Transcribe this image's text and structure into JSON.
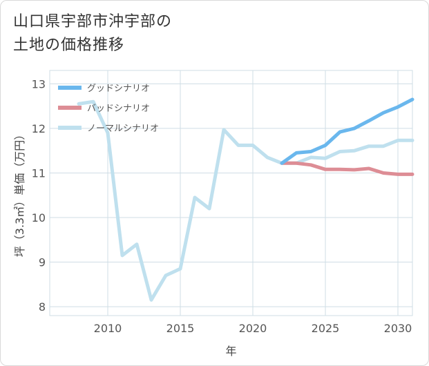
{
  "title_line1": "山口県宇部市沖宇部の",
  "title_line2": "土地の価格推移",
  "chart_data": {
    "type": "line",
    "xlabel": "年",
    "ylabel": "坪（3.3㎡）単価（万円）",
    "xlim": [
      2006,
      2031
    ],
    "ylim": [
      7.8,
      13.3
    ],
    "xticks": [
      2010,
      2015,
      2020,
      2025,
      2030
    ],
    "yticks": [
      8,
      9,
      10,
      11,
      12,
      13
    ],
    "grid": true,
    "legend_position": "top-left",
    "series": [
      {
        "name": "グッドシナリオ",
        "color": "#6ab7ed",
        "x": [
          2022,
          2023,
          2024,
          2025,
          2026,
          2027,
          2028,
          2029,
          2030,
          2031
        ],
        "y": [
          11.22,
          11.45,
          11.48,
          11.62,
          11.92,
          12.0,
          12.17,
          12.35,
          12.48,
          12.65
        ]
      },
      {
        "name": "バッドシナリオ",
        "color": "#dd8d95",
        "x": [
          2022,
          2023,
          2024,
          2025,
          2026,
          2027,
          2028,
          2029,
          2030,
          2031
        ],
        "y": [
          11.22,
          11.22,
          11.18,
          11.08,
          11.08,
          11.07,
          11.1,
          11.0,
          10.97,
          10.97
        ]
      },
      {
        "name": "ノーマルシナリオ",
        "color": "#bfe0ee",
        "x": [
          2008,
          2009,
          2010,
          2011,
          2012,
          2013,
          2014,
          2015,
          2016,
          2017,
          2018,
          2019,
          2020,
          2021,
          2022,
          2023,
          2024,
          2025,
          2026,
          2027,
          2028,
          2029,
          2030,
          2031
        ],
        "y": [
          12.55,
          12.6,
          11.9,
          9.15,
          9.4,
          8.15,
          8.7,
          8.85,
          10.45,
          10.2,
          11.97,
          11.62,
          11.62,
          11.35,
          11.22,
          11.22,
          11.35,
          11.33,
          11.48,
          11.5,
          11.6,
          11.6,
          11.73,
          11.73
        ]
      }
    ]
  }
}
